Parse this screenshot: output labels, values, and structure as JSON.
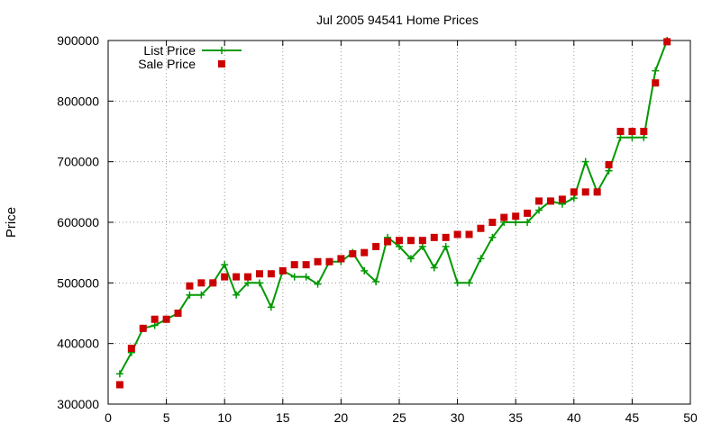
{
  "chart_data": {
    "type": "line",
    "title": "Jul 2005 94541 Home Prices",
    "xlabel": "",
    "ylabel": "Price",
    "xlim": [
      0,
      50
    ],
    "ylim": [
      300000,
      900000
    ],
    "xticks": [
      0,
      5,
      10,
      15,
      20,
      25,
      30,
      35,
      40,
      45,
      50
    ],
    "yticks": [
      300000,
      400000,
      500000,
      600000,
      700000,
      800000,
      900000
    ],
    "grid": true,
    "legend_position": "top-left",
    "series": [
      {
        "name": "List Price",
        "style": "line-with-plus-markers",
        "color": "#009900",
        "x": [
          1,
          2,
          3,
          4,
          5,
          6,
          7,
          8,
          9,
          10,
          11,
          12,
          13,
          14,
          15,
          16,
          17,
          18,
          19,
          20,
          21,
          22,
          23,
          24,
          25,
          26,
          27,
          28,
          29,
          30,
          31,
          32,
          33,
          34,
          35,
          36,
          37,
          38,
          39,
          40,
          41,
          42,
          43,
          44,
          45,
          46,
          47,
          48
        ],
        "values": [
          350000,
          385000,
          425000,
          430000,
          440000,
          450000,
          480000,
          480000,
          500000,
          530000,
          480000,
          500000,
          500000,
          460000,
          520000,
          510000,
          510000,
          498000,
          535000,
          535000,
          550000,
          520000,
          502000,
          575000,
          560000,
          540000,
          560000,
          525000,
          560000,
          500000,
          500000,
          540000,
          575000,
          600000,
          600000,
          600000,
          620000,
          635000,
          630000,
          640000,
          700000,
          650000,
          685000,
          740000,
          740000,
          740000,
          850000,
          900000
        ]
      },
      {
        "name": "Sale Price",
        "style": "square-markers",
        "color": "#cc0000",
        "x": [
          1,
          2,
          3,
          4,
          5,
          6,
          7,
          8,
          9,
          10,
          11,
          12,
          13,
          14,
          15,
          16,
          17,
          18,
          19,
          20,
          21,
          22,
          23,
          24,
          25,
          26,
          27,
          28,
          29,
          30,
          31,
          32,
          33,
          34,
          35,
          36,
          37,
          38,
          39,
          40,
          41,
          42,
          43,
          44,
          45,
          46,
          47,
          48
        ],
        "values": [
          332000,
          392000,
          425000,
          440000,
          440000,
          450000,
          495000,
          500000,
          500000,
          510000,
          510000,
          510000,
          515000,
          515000,
          520000,
          530000,
          530000,
          535000,
          535000,
          540000,
          548000,
          550000,
          560000,
          568000,
          570000,
          570000,
          570000,
          575000,
          575000,
          580000,
          580000,
          590000,
          600000,
          608000,
          610000,
          615000,
          635000,
          635000,
          638000,
          650000,
          650000,
          650000,
          695000,
          750000,
          750000,
          750000,
          830000,
          898000
        ]
      }
    ]
  }
}
